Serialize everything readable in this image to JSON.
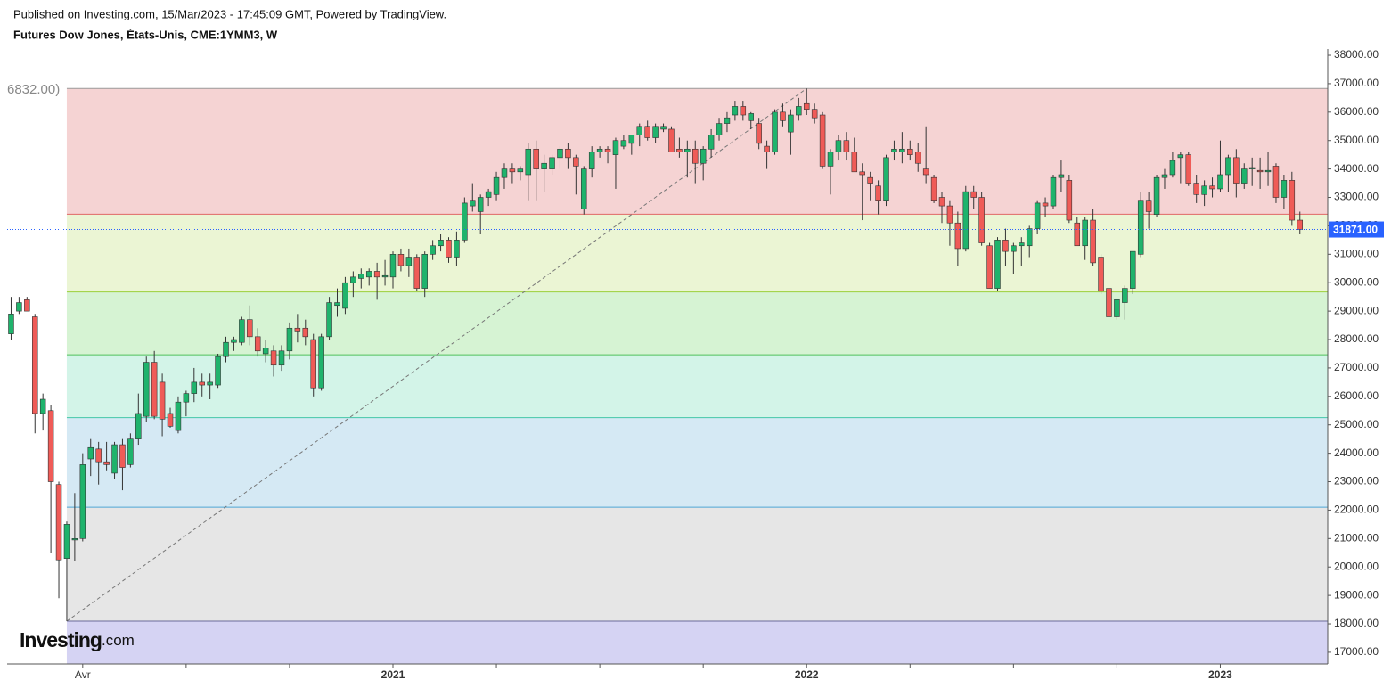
{
  "header": {
    "published": "Published on Investing.com, 15/Mar/2023 - 17:45:09 GMT, Powered by TradingView.",
    "instrument": "Futures Dow Jones, États-Unis, CME:1YMM3, W"
  },
  "logo": {
    "name": "Investing",
    "suffix": ".com"
  },
  "chart_data": {
    "type": "candlestick",
    "up_color": "#1fb36c",
    "down_color": "#ef5b57",
    "wick_color": "#333333",
    "xlim": [
      -0.5,
      165.5
    ],
    "ylim": [
      16590,
      38220
    ],
    "xticks": [
      {
        "value": 9,
        "label": "Avr"
      },
      22,
      35,
      {
        "value": 48,
        "label": "2021"
      },
      61,
      74,
      87,
      {
        "value": 100,
        "label": "2022"
      },
      113,
      126,
      139,
      {
        "value": 152,
        "label": "2023"
      }
    ],
    "yticks": [
      {
        "value": 17000,
        "label": "17000.00"
      },
      {
        "value": 18000,
        "label": "18000.00"
      },
      {
        "value": 19000,
        "label": "19000.00"
      },
      {
        "value": 20000,
        "label": "20000.00"
      },
      {
        "value": 21000,
        "label": "21000.00"
      },
      {
        "value": 22000,
        "label": "22000.00"
      },
      {
        "value": 23000,
        "label": "23000.00"
      },
      {
        "value": 24000,
        "label": "24000.00"
      },
      {
        "value": 25000,
        "label": "25000.00"
      },
      {
        "value": 26000,
        "label": "26000.00"
      },
      {
        "value": 27000,
        "label": "27000.00"
      },
      {
        "value": 28000,
        "label": "28000.00"
      },
      {
        "value": 29000,
        "label": "29000.00"
      },
      {
        "value": 30000,
        "label": "30000.00"
      },
      {
        "value": 31000,
        "label": "31000.00"
      },
      {
        "value": 32000,
        "label": "32000.00"
      },
      {
        "value": 33000,
        "label": "33000.00"
      },
      {
        "value": 34000,
        "label": "34000.00"
      },
      {
        "value": 35000,
        "label": "35000.00"
      },
      {
        "value": 36000,
        "label": "36000.00"
      },
      {
        "value": 37000,
        "label": "37000.00"
      },
      {
        "value": 38000,
        "label": "38000.00"
      }
    ],
    "last": {
      "value": 31871,
      "label": "31871.00",
      "color": "#2962ff"
    },
    "fib": {
      "levels": [
        36832,
        32410,
        29674,
        27463,
        25252,
        22104,
        18094
      ],
      "top_label": "6832.00)",
      "line_colors": [
        "#999999",
        "#e06666",
        "#9bcf3a",
        "#4fc15a",
        "#45c7a8",
        "#4ea6d6",
        "#6b6b99"
      ],
      "fill_colors": [
        "#f5d3d3",
        "#ebf5d4",
        "#d6f3d3",
        "#d3f4e8",
        "#d5e9f4",
        "#e6e6e6",
        "#d5d3f3"
      ]
    },
    "ohlc": [
      [
        28200,
        29500,
        28000,
        28900
      ],
      [
        29000,
        29500,
        28900,
        29300
      ],
      [
        29400,
        29500,
        29000,
        29000
      ],
      [
        28800,
        28900,
        24700,
        25400
      ],
      [
        25400,
        26100,
        24800,
        25900
      ],
      [
        25500,
        25700,
        20500,
        23000
      ],
      [
        22900,
        23000,
        18900,
        20250
      ],
      [
        20300,
        21600,
        18094,
        21500
      ],
      [
        20950,
        22600,
        20200,
        21000
      ],
      [
        21000,
        24000,
        20900,
        23600
      ],
      [
        23800,
        24500,
        23200,
        24200
      ],
      [
        24150,
        24400,
        22900,
        23700
      ],
      [
        23700,
        24400,
        23400,
        23600
      ],
      [
        23300,
        24400,
        23100,
        24300
      ],
      [
        24300,
        24500,
        22700,
        23500
      ],
      [
        23600,
        24700,
        23500,
        24500
      ],
      [
        24500,
        26100,
        24300,
        25400
      ],
      [
        25300,
        27400,
        25100,
        27200
      ],
      [
        27200,
        27600,
        25200,
        25300
      ],
      [
        26500,
        26800,
        24600,
        25200
      ],
      [
        25400,
        25600,
        24900,
        24950
      ],
      [
        24800,
        26000,
        24700,
        25800
      ],
      [
        25800,
        26200,
        25300,
        26100
      ],
      [
        26100,
        27000,
        25800,
        26500
      ],
      [
        26500,
        26800,
        26000,
        26400
      ],
      [
        26400,
        26800,
        25900,
        26500
      ],
      [
        26400,
        27500,
        26300,
        27400
      ],
      [
        27400,
        28100,
        27200,
        27900
      ],
      [
        27900,
        28100,
        27600,
        28000
      ],
      [
        27900,
        28800,
        27800,
        28700
      ],
      [
        28700,
        29200,
        27800,
        28100
      ],
      [
        28100,
        28400,
        27400,
        27600
      ],
      [
        27500,
        28000,
        27200,
        27700
      ],
      [
        27600,
        27800,
        26700,
        27100
      ],
      [
        27100,
        27800,
        26900,
        27600
      ],
      [
        27600,
        28600,
        27300,
        28400
      ],
      [
        28400,
        28900,
        27900,
        28300
      ],
      [
        28400,
        28700,
        27800,
        28100
      ],
      [
        28000,
        28200,
        26000,
        26300
      ],
      [
        26300,
        28200,
        26200,
        28100
      ],
      [
        28100,
        29500,
        28000,
        29300
      ],
      [
        29200,
        29800,
        28800,
        29300
      ],
      [
        29100,
        30200,
        28900,
        30000
      ],
      [
        30000,
        30400,
        29500,
        30200
      ],
      [
        30150,
        30500,
        29800,
        30300
      ],
      [
        30200,
        30500,
        29900,
        30400
      ],
      [
        30400,
        30700,
        29400,
        30200
      ],
      [
        30200,
        30800,
        29900,
        30250
      ],
      [
        30200,
        31100,
        29800,
        31000
      ],
      [
        31000,
        31200,
        30400,
        30600
      ],
      [
        30600,
        31200,
        30200,
        30900
      ],
      [
        30900,
        31000,
        29700,
        29800
      ],
      [
        29800,
        31100,
        29500,
        31000
      ],
      [
        31000,
        31500,
        30800,
        31300
      ],
      [
        31300,
        31700,
        31100,
        31500
      ],
      [
        31500,
        31600,
        30700,
        30900
      ],
      [
        30900,
        31800,
        30600,
        31500
      ],
      [
        31500,
        33000,
        31400,
        32800
      ],
      [
        32700,
        33500,
        32500,
        32900
      ],
      [
        32500,
        33100,
        31700,
        33000
      ],
      [
        33000,
        33300,
        32700,
        33200
      ],
      [
        33100,
        33900,
        32900,
        33700
      ],
      [
        33700,
        34200,
        33300,
        34000
      ],
      [
        34000,
        34200,
        33500,
        33900
      ],
      [
        33900,
        34100,
        33600,
        34000
      ],
      [
        33800,
        34900,
        32900,
        34700
      ],
      [
        34700,
        35000,
        32900,
        34000
      ],
      [
        34000,
        34500,
        33200,
        34200
      ],
      [
        34000,
        34500,
        33800,
        34400
      ],
      [
        34400,
        34800,
        34000,
        34700
      ],
      [
        34700,
        34900,
        34000,
        34400
      ],
      [
        34400,
        34500,
        33100,
        34100
      ],
      [
        32600,
        34100,
        32400,
        34000
      ],
      [
        34000,
        34800,
        33700,
        34600
      ],
      [
        34600,
        34800,
        34400,
        34700
      ],
      [
        34700,
        34800,
        34200,
        34600
      ],
      [
        34500,
        35100,
        33300,
        35000
      ],
      [
        34800,
        35200,
        34700,
        35000
      ],
      [
        34900,
        35200,
        34500,
        35200
      ],
      [
        35200,
        35600,
        34800,
        35500
      ],
      [
        35500,
        35700,
        35000,
        35100
      ],
      [
        35100,
        35600,
        34900,
        35500
      ],
      [
        35400,
        35600,
        35300,
        35500
      ],
      [
        35400,
        35500,
        34600,
        34600
      ],
      [
        34700,
        35100,
        34400,
        34600
      ],
      [
        34600,
        35000,
        33700,
        34700
      ],
      [
        34700,
        35000,
        33500,
        34200
      ],
      [
        34200,
        34800,
        33600,
        34700
      ],
      [
        34700,
        35400,
        34400,
        35200
      ],
      [
        35200,
        35800,
        35000,
        35600
      ],
      [
        35600,
        36000,
        35300,
        35800
      ],
      [
        35900,
        36400,
        35700,
        36200
      ],
      [
        36200,
        36400,
        35700,
        35900
      ],
      [
        35700,
        36000,
        35400,
        35950
      ],
      [
        35600,
        35800,
        34700,
        34900
      ],
      [
        34800,
        35000,
        34000,
        34600
      ],
      [
        34600,
        36100,
        34500,
        36000
      ],
      [
        36000,
        36300,
        35500,
        35700
      ],
      [
        35300,
        36100,
        34500,
        35900
      ],
      [
        35900,
        36500,
        35700,
        36200
      ],
      [
        36300,
        36832,
        35900,
        36100
      ],
      [
        36100,
        36300,
        35600,
        35800
      ],
      [
        35900,
        36000,
        34000,
        34100
      ],
      [
        34100,
        34700,
        33100,
        34600
      ],
      [
        34600,
        35200,
        34300,
        35000
      ],
      [
        35000,
        35300,
        34300,
        34600
      ],
      [
        34600,
        35100,
        33900,
        33900
      ],
      [
        33900,
        34200,
        32200,
        33800
      ],
      [
        33700,
        33900,
        32900,
        33500
      ],
      [
        33400,
        33600,
        32400,
        32900
      ],
      [
        32900,
        34500,
        32700,
        34400
      ],
      [
        34600,
        35000,
        34300,
        34700
      ],
      [
        34600,
        35300,
        34200,
        34700
      ],
      [
        34700,
        35000,
        34300,
        34500
      ],
      [
        34600,
        34900,
        33900,
        34200
      ],
      [
        34000,
        35500,
        33500,
        33800
      ],
      [
        33700,
        33800,
        32800,
        32900
      ],
      [
        33000,
        33200,
        32100,
        32700
      ],
      [
        32700,
        32900,
        31300,
        32100
      ],
      [
        32100,
        32500,
        30600,
        31200
      ],
      [
        31200,
        33400,
        31100,
        33200
      ],
      [
        33200,
        33400,
        32600,
        33000
      ],
      [
        33000,
        33200,
        31300,
        31400
      ],
      [
        31300,
        31400,
        29800,
        29800
      ],
      [
        29800,
        31600,
        29700,
        31500
      ],
      [
        31500,
        31900,
        30600,
        31100
      ],
      [
        31100,
        31400,
        30300,
        31300
      ],
      [
        31300,
        31600,
        30600,
        31400
      ],
      [
        31300,
        32000,
        30900,
        31900
      ],
      [
        31900,
        32900,
        31700,
        32800
      ],
      [
        32800,
        33000,
        32300,
        32700
      ],
      [
        32700,
        33800,
        32600,
        33700
      ],
      [
        33700,
        34300,
        33200,
        33800
      ],
      [
        33600,
        33800,
        32100,
        32200
      ],
      [
        32100,
        32300,
        31300,
        31300
      ],
      [
        31300,
        32300,
        30800,
        32200
      ],
      [
        32200,
        32600,
        30600,
        30700
      ],
      [
        30900,
        31000,
        29600,
        29700
      ],
      [
        29800,
        30100,
        28800,
        28800
      ],
      [
        28800,
        29400,
        28700,
        29400
      ],
      [
        29300,
        29900,
        28700,
        29800
      ],
      [
        29800,
        31100,
        29600,
        31100
      ],
      [
        31000,
        33200,
        30900,
        32900
      ],
      [
        32900,
        33200,
        31900,
        32500
      ],
      [
        32400,
        33800,
        32300,
        33700
      ],
      [
        33700,
        34000,
        33300,
        33800
      ],
      [
        33800,
        34600,
        33700,
        34300
      ],
      [
        34400,
        34600,
        33500,
        34500
      ],
      [
        34500,
        34600,
        33400,
        33500
      ],
      [
        33500,
        33800,
        32800,
        33100
      ],
      [
        33100,
        33600,
        32700,
        33400
      ],
      [
        33400,
        33700,
        33000,
        33300
      ],
      [
        33300,
        35000,
        33200,
        33800
      ],
      [
        33800,
        34500,
        33200,
        34400
      ],
      [
        34400,
        34700,
        33000,
        33500
      ],
      [
        33500,
        34200,
        33300,
        34000
      ],
      [
        34000,
        34400,
        33400,
        34050
      ],
      [
        33950,
        34400,
        33300,
        33900
      ],
      [
        33900,
        34600,
        33400,
        33950
      ],
      [
        34100,
        34200,
        32800,
        33000
      ],
      [
        33000,
        33800,
        32600,
        33600
      ],
      [
        33600,
        33900,
        32000,
        32200
      ],
      [
        32200,
        32500,
        31700,
        31871
      ]
    ]
  }
}
